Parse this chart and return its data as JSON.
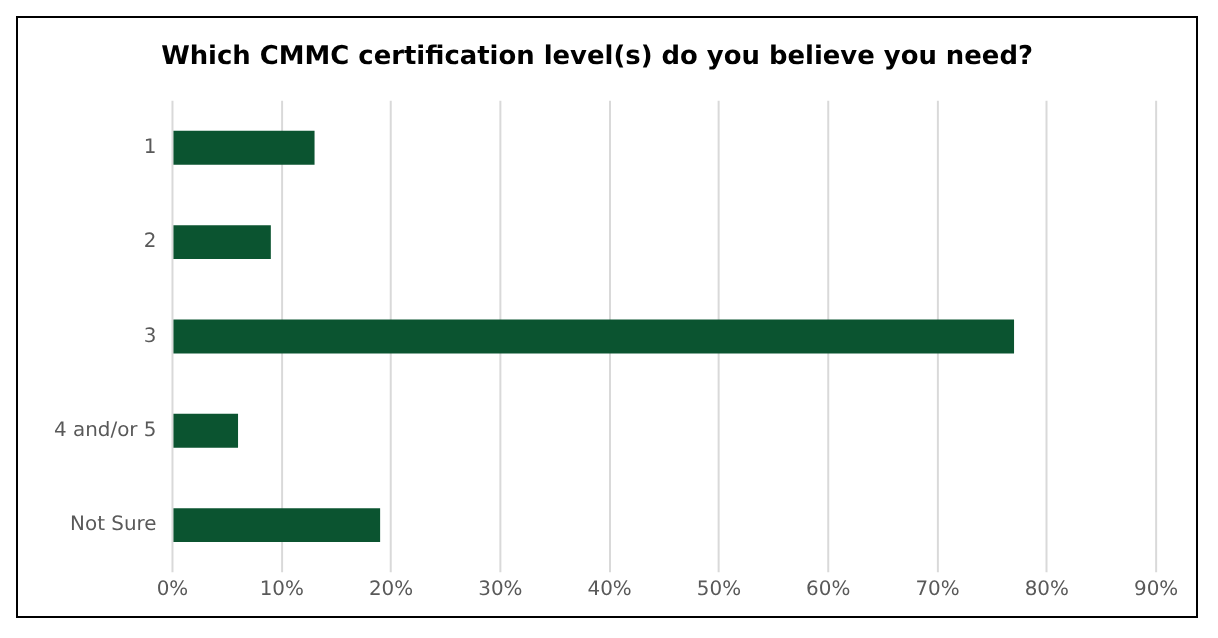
{
  "chart_data": {
    "type": "bar",
    "orientation": "horizontal",
    "title": "Which CMMC certification level(s) do you believe you need?",
    "categories": [
      "1",
      "2",
      "3",
      "4 and/or 5",
      "Not Sure"
    ],
    "values": [
      13,
      9,
      77,
      6,
      19
    ],
    "color": "#0b5430",
    "xlim": [
      0,
      90
    ],
    "xticks": [
      {
        "value": 0,
        "label": "0%"
      },
      {
        "value": 10,
        "label": "10%"
      },
      {
        "value": 20,
        "label": "20%"
      },
      {
        "value": 30,
        "label": "30%"
      },
      {
        "value": 40,
        "label": "40%"
      },
      {
        "value": 50,
        "label": "50%"
      },
      {
        "value": 60,
        "label": "60%"
      },
      {
        "value": 70,
        "label": "70%"
      },
      {
        "value": 80,
        "label": "80%"
      },
      {
        "value": 90,
        "label": "90%"
      }
    ],
    "grid": "x"
  }
}
